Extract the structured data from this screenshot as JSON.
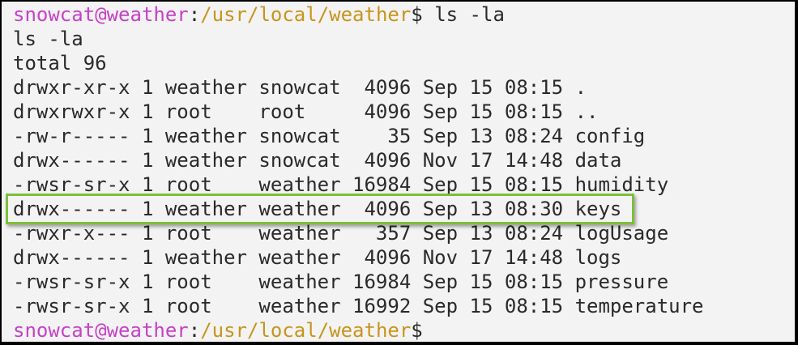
{
  "colors": {
    "user": "#c641c6",
    "path": "#c8951c",
    "highlight": "#7cbf3a",
    "background": "#f3f3f3"
  },
  "prompt": {
    "user_host": "snowcat@weather",
    "separator": ":",
    "path": "/usr/local/weather",
    "symbol": "$",
    "command": " ls -la"
  },
  "echo": "ls -la",
  "total": "total 96",
  "entries": [
    "drwxr-xr-x 1 weather snowcat  4096 Sep 15 08:15 .",
    "drwxrwxr-x 1 root    root     4096 Sep 15 08:15 ..",
    "-rw-r----- 1 weather snowcat    35 Sep 13 08:24 config",
    "drwx------ 1 weather snowcat  4096 Nov 17 14:48 data",
    "-rwsr-sr-x 1 root    weather 16984 Sep 15 08:15 humidity",
    "drwx------ 1 weather weather  4096 Sep 13 08:30 keys",
    "-rwxr-x--- 1 root    weather   357 Sep 13 08:24 logUsage",
    "drwx------ 1 weather weather  4096 Nov 17 14:48 logs",
    "-rwsr-sr-x 1 root    weather 16984 Sep 15 08:15 pressure",
    "-rwsr-sr-x 1 root    weather 16992 Sep 15 08:15 temperature"
  ],
  "highlighted_entry": "keys"
}
